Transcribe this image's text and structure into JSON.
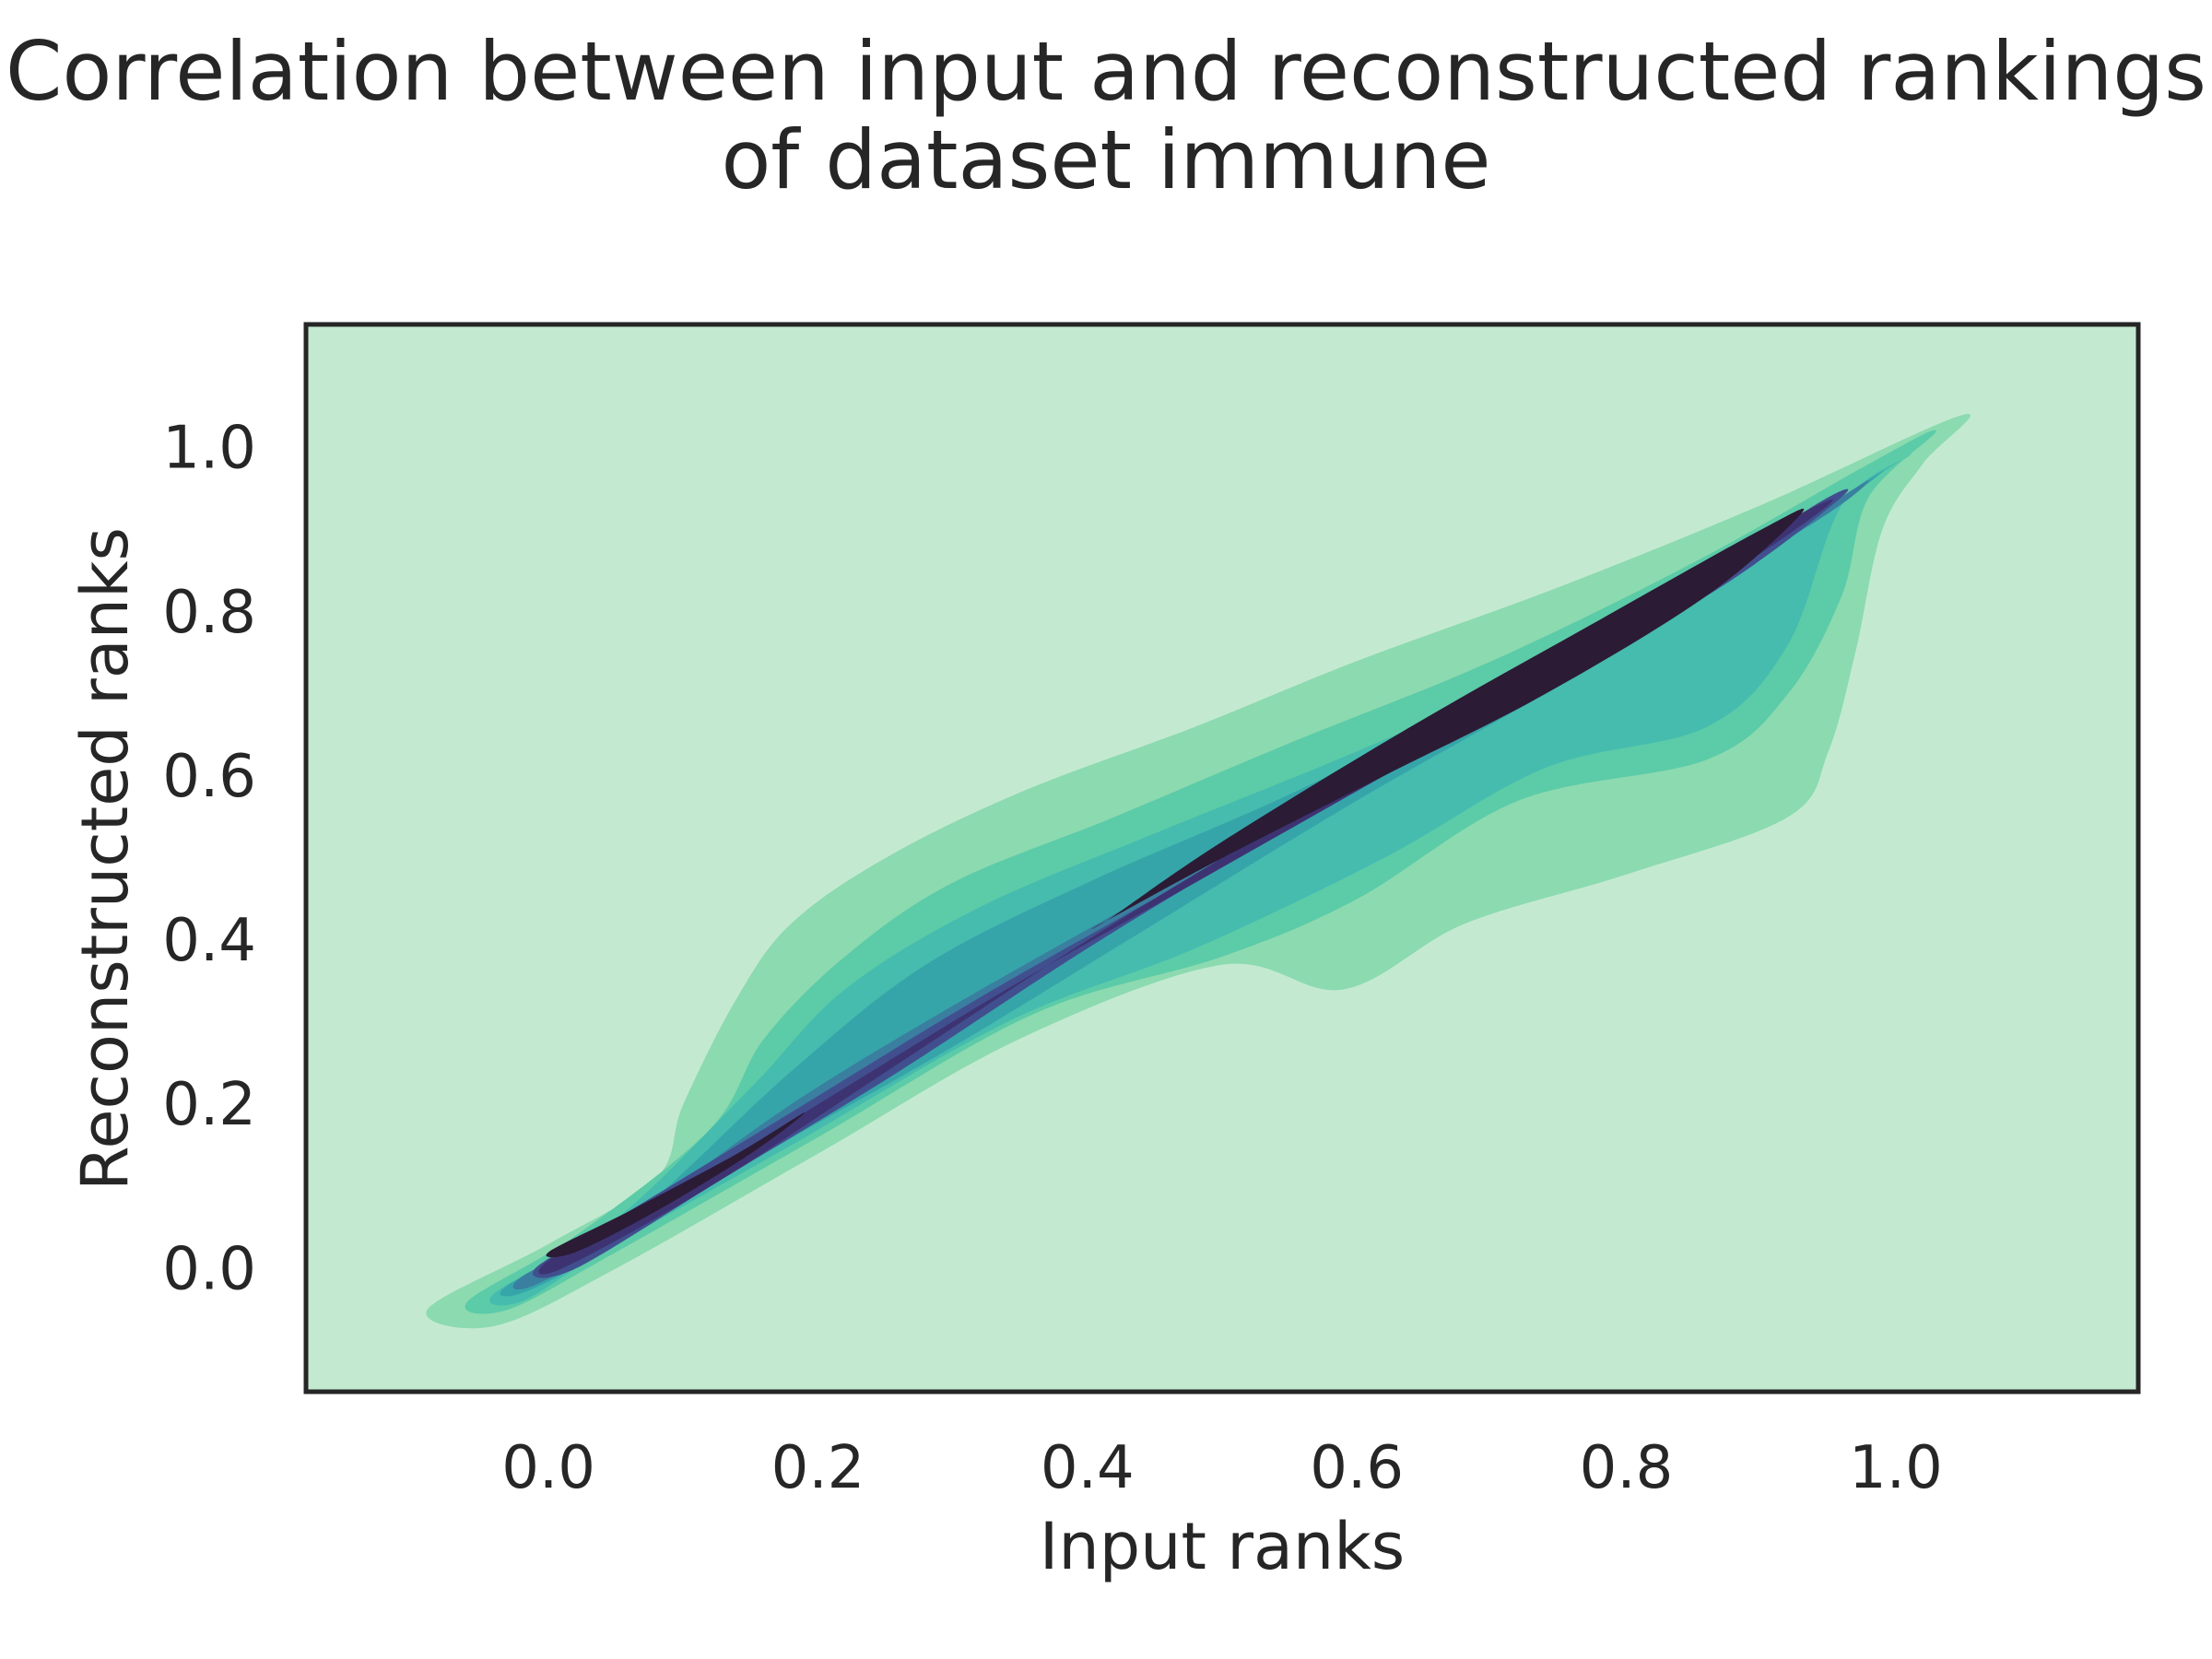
{
  "chart_data": {
    "type": "density-contour",
    "title_line_1": "Correlation between input and reconstructed rankings",
    "title_line_2": "of dataset immune",
    "xlabel": "Input ranks",
    "ylabel": "Reconstructed ranks",
    "xlim": [
      -0.18,
      1.18
    ],
    "ylim": [
      -0.15,
      1.15
    ],
    "xticks": [
      0.0,
      0.2,
      0.4,
      0.6,
      0.8,
      1.0
    ],
    "yticks": [
      0.0,
      0.2,
      0.4,
      0.6,
      0.8,
      1.0
    ],
    "xtick_labels": [
      "0.0",
      "0.2",
      "0.4",
      "0.6",
      "0.8",
      "1.0"
    ],
    "ytick_labels": [
      "0.0",
      "0.2",
      "0.4",
      "0.6",
      "0.8",
      "1.0"
    ],
    "grid": false,
    "background_color": "#c3ead0",
    "levels": [
      {
        "level": 1,
        "color": "#8cdab0",
        "outline": [
          [
            -0.09,
            -0.05
          ],
          [
            0.0,
            0.03
          ],
          [
            0.08,
            0.11
          ],
          [
            0.1,
            0.2
          ],
          [
            0.14,
            0.33
          ],
          [
            0.18,
            0.42
          ],
          [
            0.25,
            0.5
          ],
          [
            0.35,
            0.58
          ],
          [
            0.48,
            0.66
          ],
          [
            0.6,
            0.74
          ],
          [
            0.75,
            0.83
          ],
          [
            0.9,
            0.93
          ],
          [
            1.05,
            1.04
          ],
          [
            1.02,
            0.98
          ],
          [
            0.99,
            0.9
          ],
          [
            0.97,
            0.75
          ],
          [
            0.95,
            0.63
          ],
          [
            0.92,
            0.55
          ],
          [
            0.8,
            0.48
          ],
          [
            0.68,
            0.42
          ],
          [
            0.59,
            0.34
          ],
          [
            0.5,
            0.37
          ],
          [
            0.35,
            0.28
          ],
          [
            0.2,
            0.14
          ],
          [
            0.05,
            0.0
          ],
          [
            -0.04,
            -0.07
          ]
        ]
      },
      {
        "level": 2,
        "color": "#5ccba8",
        "outline": [
          [
            -0.06,
            -0.04
          ],
          [
            0.02,
            0.04
          ],
          [
            0.12,
            0.17
          ],
          [
            0.16,
            0.28
          ],
          [
            0.22,
            0.38
          ],
          [
            0.3,
            0.47
          ],
          [
            0.42,
            0.55
          ],
          [
            0.55,
            0.64
          ],
          [
            0.7,
            0.74
          ],
          [
            0.85,
            0.86
          ],
          [
            0.98,
            0.98
          ],
          [
            1.03,
            1.02
          ],
          [
            0.98,
            0.94
          ],
          [
            0.96,
            0.82
          ],
          [
            0.92,
            0.7
          ],
          [
            0.86,
            0.62
          ],
          [
            0.72,
            0.57
          ],
          [
            0.6,
            0.45
          ],
          [
            0.5,
            0.38
          ],
          [
            0.36,
            0.31
          ],
          [
            0.2,
            0.16
          ],
          [
            0.05,
            0.02
          ],
          [
            -0.03,
            -0.05
          ]
        ]
      },
      {
        "level": 3,
        "color": "#45bcae",
        "outline": [
          [
            -0.04,
            -0.03
          ],
          [
            0.05,
            0.06
          ],
          [
            0.15,
            0.22
          ],
          [
            0.22,
            0.34
          ],
          [
            0.32,
            0.44
          ],
          [
            0.45,
            0.53
          ],
          [
            0.6,
            0.63
          ],
          [
            0.75,
            0.74
          ],
          [
            0.88,
            0.86
          ],
          [
            0.99,
            0.97
          ],
          [
            1.01,
            0.99
          ],
          [
            0.96,
            0.93
          ],
          [
            0.92,
            0.76
          ],
          [
            0.86,
            0.66
          ],
          [
            0.74,
            0.61
          ],
          [
            0.62,
            0.5
          ],
          [
            0.48,
            0.39
          ],
          [
            0.34,
            0.3
          ],
          [
            0.18,
            0.15
          ],
          [
            0.04,
            0.02
          ],
          [
            -0.02,
            -0.04
          ]
        ]
      },
      {
        "level": 4,
        "color": "#36a5a9",
        "outline": [
          [
            -0.03,
            -0.02
          ],
          [
            0.06,
            0.06
          ],
          [
            0.18,
            0.24
          ],
          [
            0.28,
            0.37
          ],
          [
            0.4,
            0.47
          ],
          [
            0.54,
            0.57
          ],
          [
            0.68,
            0.68
          ],
          [
            0.82,
            0.79
          ],
          [
            0.93,
            0.9
          ],
          [
            0.99,
            0.97
          ],
          [
            0.96,
            0.94
          ],
          [
            0.87,
            0.84
          ],
          [
            0.76,
            0.72
          ],
          [
            0.6,
            0.57
          ],
          [
            0.44,
            0.41
          ],
          [
            0.3,
            0.27
          ],
          [
            0.16,
            0.14
          ],
          [
            0.04,
            0.02
          ],
          [
            -0.02,
            -0.03
          ]
        ]
      },
      {
        "level": 5,
        "color": "#3a7fa0",
        "outline": [
          [
            -0.02,
            -0.01
          ],
          [
            0.06,
            0.06
          ],
          [
            0.18,
            0.2
          ],
          [
            0.3,
            0.32
          ],
          [
            0.44,
            0.45
          ],
          [
            0.58,
            0.58
          ],
          [
            0.72,
            0.7
          ],
          [
            0.85,
            0.82
          ],
          [
            0.95,
            0.92
          ],
          [
            0.98,
            0.96
          ],
          [
            0.94,
            0.92
          ],
          [
            0.82,
            0.8
          ],
          [
            0.66,
            0.64
          ],
          [
            0.5,
            0.49
          ],
          [
            0.34,
            0.33
          ],
          [
            0.2,
            0.19
          ],
          [
            0.08,
            0.06
          ],
          [
            -0.01,
            -0.02
          ]
        ]
      },
      {
        "level": 6,
        "color": "#414f8f",
        "outline": [
          [
            -0.01,
            0.0
          ],
          [
            0.06,
            0.07
          ],
          [
            0.18,
            0.19
          ],
          [
            0.32,
            0.33
          ],
          [
            0.46,
            0.46
          ],
          [
            0.6,
            0.59
          ],
          [
            0.74,
            0.71
          ],
          [
            0.87,
            0.83
          ],
          [
            0.96,
            0.94
          ],
          [
            0.94,
            0.93
          ],
          [
            0.84,
            0.82
          ],
          [
            0.7,
            0.69
          ],
          [
            0.55,
            0.54
          ],
          [
            0.4,
            0.39
          ],
          [
            0.26,
            0.24
          ],
          [
            0.13,
            0.11
          ],
          [
            0.02,
            0.0
          ]
        ]
      },
      {
        "level": 7,
        "color": "#3e3372",
        "outline": [
          [
            0.0,
            0.01
          ],
          [
            0.08,
            0.08
          ],
          [
            0.2,
            0.2
          ],
          [
            0.34,
            0.34
          ],
          [
            0.48,
            0.47
          ],
          [
            0.62,
            0.6
          ],
          [
            0.76,
            0.73
          ],
          [
            0.88,
            0.85
          ],
          [
            0.95,
            0.93
          ],
          [
            0.93,
            0.92
          ],
          [
            0.82,
            0.82
          ],
          [
            0.68,
            0.68
          ],
          [
            0.54,
            0.54
          ],
          [
            0.4,
            0.4
          ],
          [
            0.26,
            0.25
          ],
          [
            0.12,
            0.1
          ],
          [
            0.01,
            0.0
          ]
        ]
      },
      {
        "level": 8,
        "color": "#2b1b35",
        "outline": [
          [
            0.0,
            0.02
          ],
          [
            0.06,
            0.07
          ],
          [
            0.14,
            0.14
          ],
          [
            0.19,
            0.19
          ],
          [
            0.15,
            0.14
          ],
          [
            0.08,
            0.07
          ],
          [
            0.02,
            0.02
          ]
        ]
      },
      {
        "level": 8,
        "color": "#2b1b35",
        "outline": [
          [
            0.41,
            0.42
          ],
          [
            0.5,
            0.5
          ],
          [
            0.62,
            0.6
          ],
          [
            0.74,
            0.7
          ],
          [
            0.86,
            0.82
          ],
          [
            0.93,
            0.92
          ],
          [
            0.9,
            0.9
          ],
          [
            0.78,
            0.79
          ],
          [
            0.64,
            0.66
          ],
          [
            0.5,
            0.52
          ],
          [
            0.42,
            0.43
          ]
        ]
      }
    ]
  }
}
